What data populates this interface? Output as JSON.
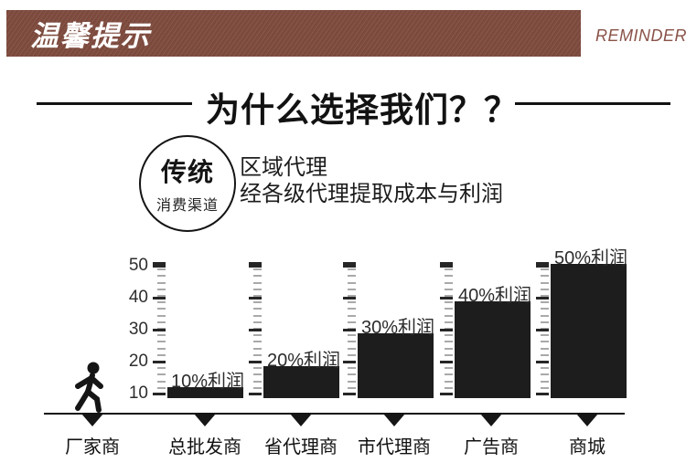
{
  "header": {
    "banner_title": "温馨提示",
    "banner_subtitle": "REMINDER",
    "banner_bg": "#7e4b3e",
    "accent_color": "#8a5248"
  },
  "section": {
    "title": "为什么选择我们？？"
  },
  "intro": {
    "badge_top": "传统",
    "badge_bottom": "消费渠道",
    "line1": "区域代理",
    "line2": "经各级代理提取成本与利润"
  },
  "chart_data": {
    "type": "bar",
    "title": "",
    "categories": [
      "厂家商",
      "总批发商",
      "省代理商",
      "市代理商",
      "广告商",
      "商城"
    ],
    "bars": [
      {
        "category": "总批发商",
        "profit_percent": 10,
        "label": "10%利润",
        "top_value": 12
      },
      {
        "category": "省代理商",
        "profit_percent": 20,
        "label": "20%利润",
        "top_value": 18.5
      },
      {
        "category": "市代理商",
        "profit_percent": 30,
        "label": "30%利润",
        "top_value": 29
      },
      {
        "category": "广告商",
        "profit_percent": 40,
        "label": "40%利润",
        "top_value": 39
      },
      {
        "category": "商城",
        "profit_percent": 50,
        "label": "50%利润",
        "top_value": 50.5
      }
    ],
    "y_ticks": [
      10,
      20,
      30,
      40,
      50
    ],
    "ylim": [
      10,
      51.5
    ],
    "baseline_value": 10,
    "bar_color": "#1d1d1d",
    "first_category_icon": "walking-person-icon",
    "x_marker": "triangle-down",
    "grid": false,
    "legend": false
  }
}
